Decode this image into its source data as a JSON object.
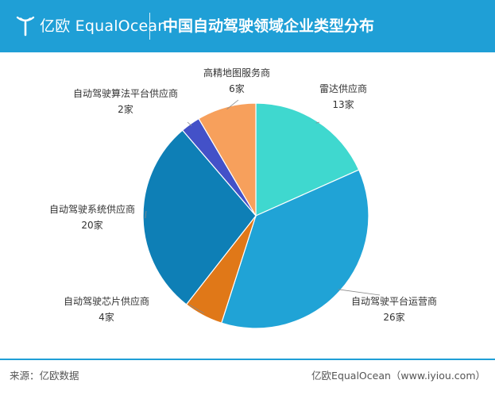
{
  "header": {
    "brand": "亿欧 EqualOcean",
    "title": "中国自动驾驶领域企业类型分布",
    "brand_color": "#1f9fd6"
  },
  "chart_data": {
    "type": "pie",
    "title": "中国自动驾驶领域企业类型分布",
    "start_angle_deg": 0,
    "direction": "clockwise",
    "slices": [
      {
        "label": "雷达供应商",
        "value": 13,
        "display": "13家",
        "color": "#3fd8cf"
      },
      {
        "label": "自动驾驶平台运营商",
        "value": 26,
        "display": "26家",
        "color": "#20a3d6"
      },
      {
        "label": "自动驾驶芯片供应商",
        "value": 4,
        "display": "4家",
        "color": "#e07818"
      },
      {
        "label": "自动驾驶系统供应商",
        "value": 20,
        "display": "20家",
        "color": "#0e7fb6"
      },
      {
        "label": "自动驾驶算法平台供应商",
        "value": 2,
        "display": "2家",
        "color": "#4351c8"
      },
      {
        "label": "高精地图服务商",
        "value": 6,
        "display": "6家",
        "color": "#f7a05c"
      }
    ]
  },
  "footer": {
    "source": "来源：亿欧数据",
    "credit": "亿欧EqualOcean（www.iyiou.com）"
  }
}
